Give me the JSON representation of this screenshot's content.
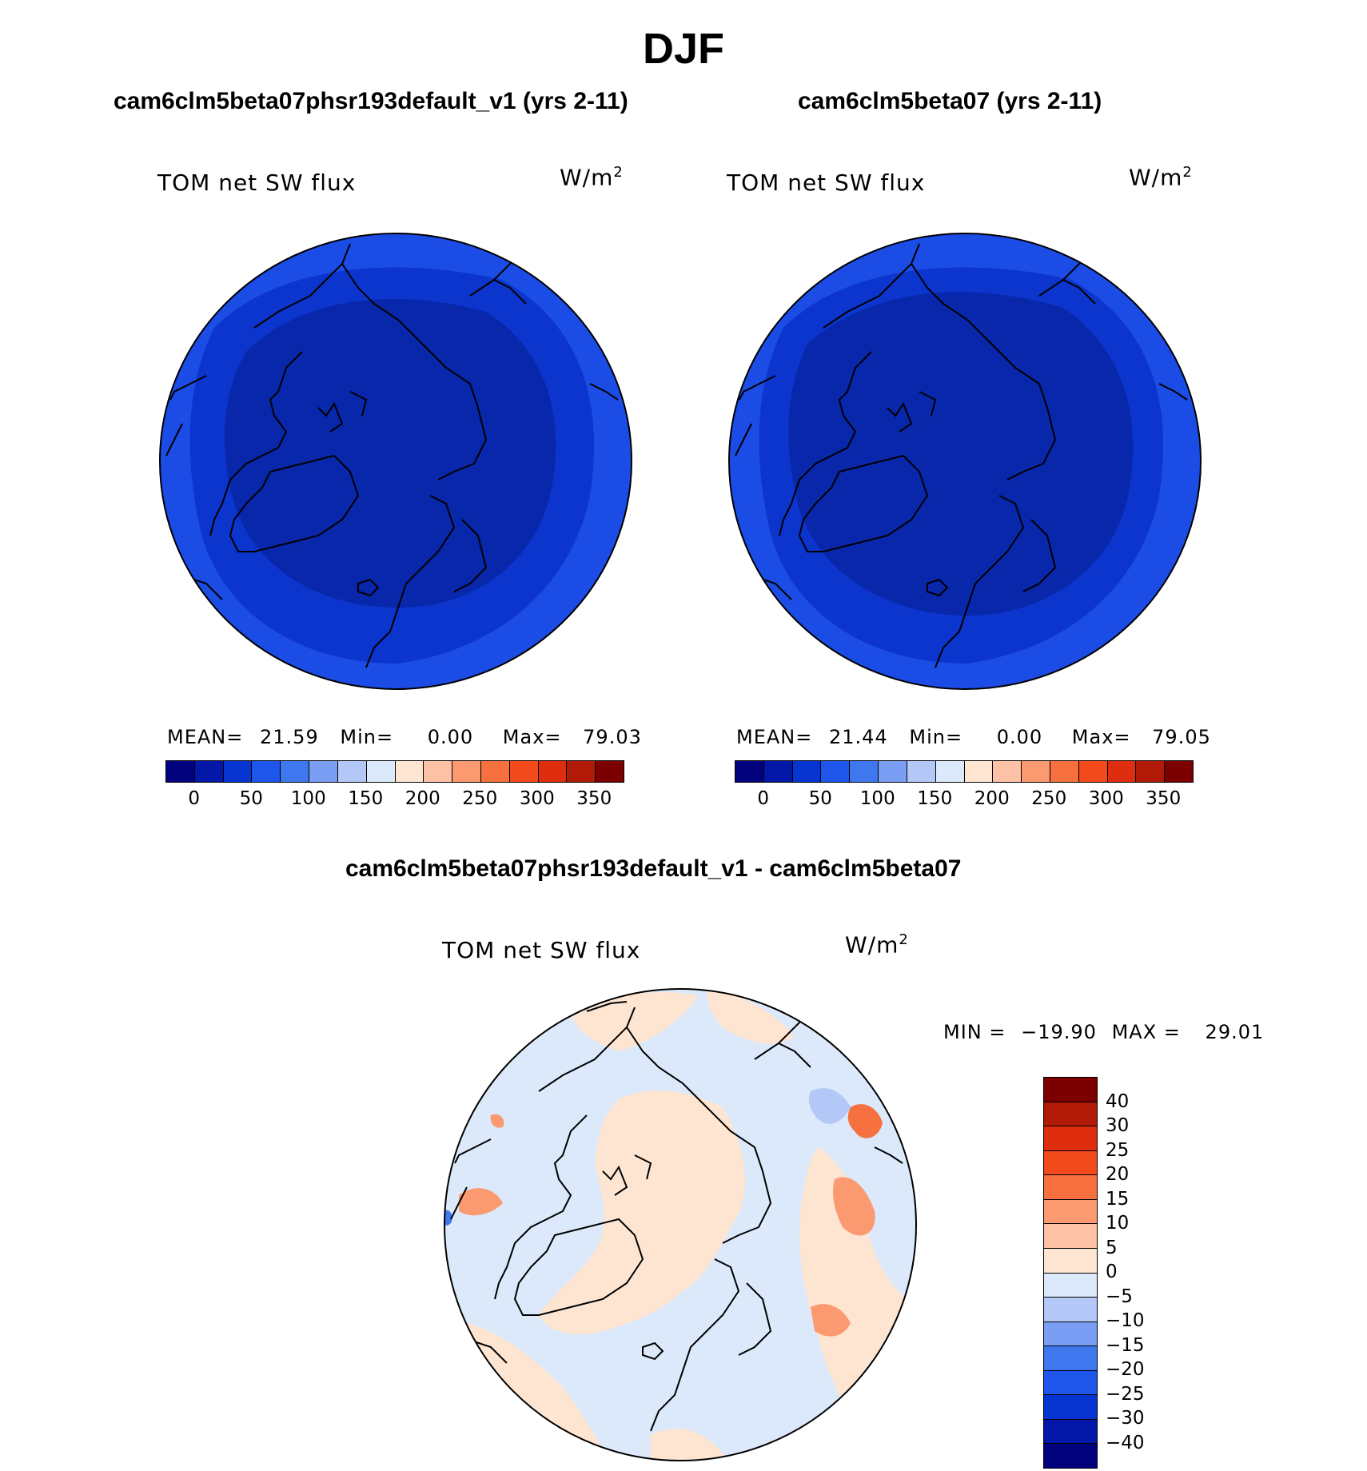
{
  "chart_data": [
    {
      "type": "heatmap",
      "panel": "top-left",
      "title": "cam6clm5beta07phsr193default_v1 (yrs 2-11)",
      "variable": "TOM net SW flux",
      "units_base": "W/m",
      "units_exp": "2",
      "stats": {
        "mean_label": "MEAN=",
        "mean": "21.59",
        "min_label": "Min=",
        "min": "0.00",
        "max_label": "Max=",
        "max": "79.03"
      },
      "colorbar_ticks": [
        "0",
        "50",
        "100",
        "150",
        "200",
        "250",
        "300",
        "350"
      ],
      "colorbar_colors": [
        "#02027e",
        "#0318a8",
        "#0635d2",
        "#1e55ea",
        "#3f78ee",
        "#7a9ef4",
        "#b3c8f7",
        "#dce9fa",
        "#fde5d2",
        "#fdc2a5",
        "#fb9a70",
        "#f7703f",
        "#f34a1c",
        "#de2d0f",
        "#b01a06",
        "#7c0000"
      ],
      "map_colors": {
        "outer": "#1b4ce6",
        "middle": "#0b35cc",
        "inner": "#0827ab"
      }
    },
    {
      "type": "heatmap",
      "panel": "top-right",
      "title": "cam6clm5beta07 (yrs 2-11)",
      "variable": "TOM net SW flux",
      "units_base": "W/m",
      "units_exp": "2",
      "stats": {
        "mean_label": "MEAN=",
        "mean": "21.44",
        "min_label": "Min=",
        "min": "0.00",
        "max_label": "Max=",
        "max": "79.05"
      },
      "colorbar_ticks": [
        "0",
        "50",
        "100",
        "150",
        "200",
        "250",
        "300",
        "350"
      ],
      "colorbar_colors": [
        "#02027e",
        "#0318a8",
        "#0635d2",
        "#1e55ea",
        "#3f78ee",
        "#7a9ef4",
        "#b3c8f7",
        "#dce9fa",
        "#fde5d2",
        "#fdc2a5",
        "#fb9a70",
        "#f7703f",
        "#f34a1c",
        "#de2d0f",
        "#b01a06",
        "#7c0000"
      ],
      "map_colors": {
        "outer": "#1b4ce6",
        "middle": "#0b35cc",
        "inner": "#0827ab"
      }
    },
    {
      "type": "heatmap",
      "panel": "bottom-difference",
      "title": "cam6clm5beta07phsr193default_v1 - cam6clm5beta07",
      "variable": "TOM net SW flux",
      "units_base": "W/m",
      "units_exp": "2",
      "stats": {
        "min_label": "MIN =",
        "min": "−19.90",
        "max_label": "MAX =",
        "max": "29.01"
      },
      "colorbar_ticks": [
        "40",
        "30",
        "25",
        "20",
        "15",
        "10",
        "5",
        "0",
        "−5",
        "−10",
        "−15",
        "−20",
        "−25",
        "−30",
        "−40"
      ],
      "colorbar_colors": [
        "#7c0000",
        "#b01a06",
        "#de2d0f",
        "#f34a1c",
        "#f7703f",
        "#fb9a70",
        "#fdc2a5",
        "#fde5d2",
        "#dce9fa",
        "#b3c8f7",
        "#7a9ef4",
        "#3f78ee",
        "#1e55ea",
        "#0635d2",
        "#0318a8",
        "#02027e"
      ],
      "map_colors": {
        "positive": "#fde5d2",
        "negative": "#dce9fa"
      }
    }
  ],
  "page": {
    "title": "DJF"
  }
}
